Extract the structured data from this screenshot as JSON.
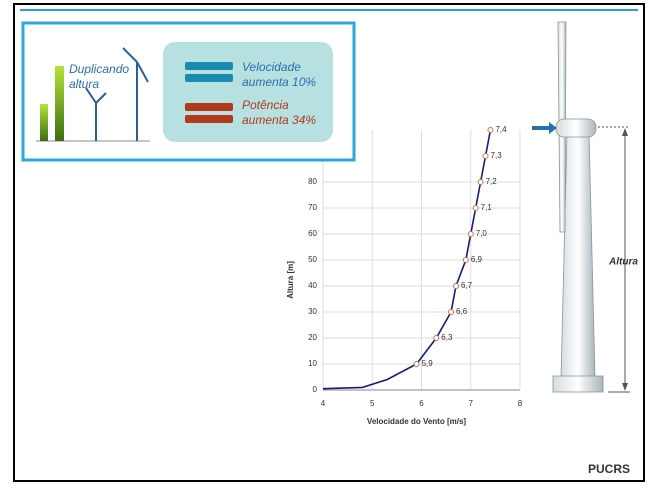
{
  "slide": {
    "caption": [
      "Duplicando",
      "altura"
    ],
    "speed_note": [
      "Velocidade",
      "aumenta 10%"
    ],
    "power_note": [
      "Potência",
      "aumenta 34%"
    ],
    "height_label": "Altura",
    "logo": "PUCRS"
  },
  "chart_data": {
    "type": "line",
    "x_label": "Velocidade do Vento [m/s]",
    "y_label": "Altura [m]",
    "series": [
      {
        "color": "#1a1a7a",
        "x": [
          4,
          4.8,
          5.3,
          5.9,
          6.3,
          6.6,
          6.7,
          6.9,
          7.0,
          7.1,
          7.2,
          7.3,
          7.4
        ],
        "values": [
          0.5,
          1,
          4,
          10,
          20,
          30,
          40,
          50,
          60,
          70,
          80,
          90,
          100
        ],
        "value_labels": [
          null,
          null,
          null,
          "5,9",
          "6,3",
          "6,6",
          "6,7",
          "6,9",
          "7,0",
          "7,1",
          "7,2",
          "7,3",
          "7,4"
        ]
      }
    ],
    "xlim": [
      4,
      8
    ],
    "xticks": [
      4,
      5,
      6,
      7,
      8
    ],
    "ylim": [
      0,
      100
    ],
    "yticks": [
      0,
      10,
      20,
      30,
      40,
      50,
      60,
      70,
      80
    ],
    "grid": true
  }
}
